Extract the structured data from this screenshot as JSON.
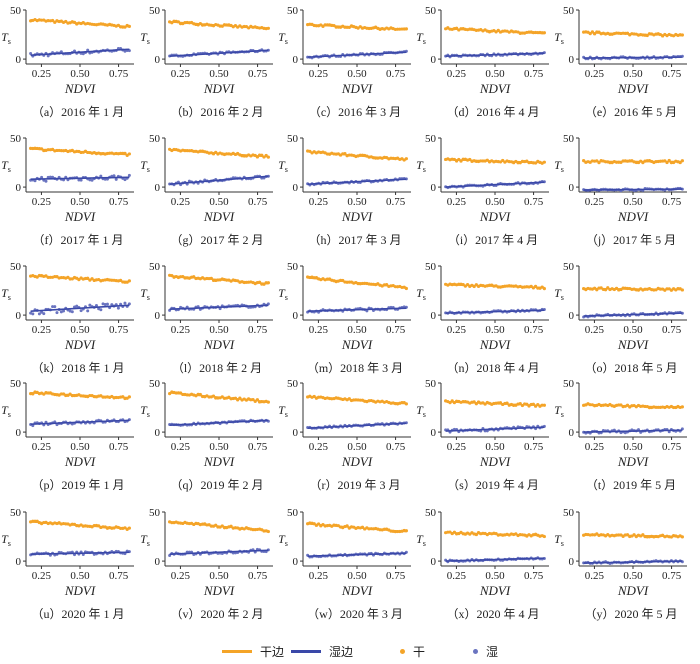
{
  "colors": {
    "dry": "#f4a428",
    "wet": "#3a48a8"
  },
  "legend": {
    "dry_edge": "干边",
    "wet_edge": "湿边",
    "dry": "干",
    "wet": "湿"
  },
  "chart_data": [
    {
      "type": "scatter",
      "caption": "（a）2016 年 1 月",
      "xlabel": "NDVI",
      "ylabel": "Ts",
      "xlim": [
        0.15,
        0.85
      ],
      "ylim": [
        -5,
        50
      ],
      "xticks": [
        "0.25",
        "0.50",
        "0.75"
      ],
      "yticks": [
        "0",
        "50"
      ],
      "dry": [
        40,
        33
      ],
      "wet": [
        4,
        10
      ],
      "wet_scatter": 2
    },
    {
      "type": "scatter",
      "caption": "（b）2016 年 2 月",
      "xlabel": "NDVI",
      "ylabel": "Ts",
      "xlim": [
        0.15,
        0.85
      ],
      "ylim": [
        -5,
        50
      ],
      "xticks": [
        "0.25",
        "0.50",
        "0.75"
      ],
      "yticks": [
        "0",
        "50"
      ],
      "dry": [
        38,
        31
      ],
      "wet": [
        3,
        9
      ],
      "wet_scatter": 1
    },
    {
      "type": "scatter",
      "caption": "（c）2016 年 3 月",
      "xlabel": "NDVI",
      "ylabel": "Ts",
      "xlim": [
        0.15,
        0.85
      ],
      "ylim": [
        -5,
        50
      ],
      "xticks": [
        "0.25",
        "0.50",
        "0.75"
      ],
      "yticks": [
        "0",
        "50"
      ],
      "dry": [
        35,
        30
      ],
      "wet": [
        2,
        7
      ],
      "wet_scatter": 1
    },
    {
      "type": "scatter",
      "caption": "（d）2016 年 4 月",
      "xlabel": "NDVI",
      "ylabel": "Ts",
      "xlim": [
        0.15,
        0.85
      ],
      "ylim": [
        -5,
        50
      ],
      "xticks": [
        "0.25",
        "0.50",
        "0.75"
      ],
      "yticks": [
        "0",
        "50"
      ],
      "dry": [
        31,
        26
      ],
      "wet": [
        3,
        6
      ],
      "wet_scatter": 1
    },
    {
      "type": "scatter",
      "caption": "（e）2016 年 5 月",
      "xlabel": "NDVI",
      "ylabel": "Ts",
      "xlim": [
        0.15,
        0.85
      ],
      "ylim": [
        -5,
        50
      ],
      "xticks": [
        "0.25",
        "0.50",
        "0.75"
      ],
      "yticks": [
        "0",
        "50"
      ],
      "dry": [
        27,
        24
      ],
      "wet": [
        1,
        2
      ],
      "wet_scatter": 1
    },
    {
      "type": "scatter",
      "caption": "（f）2017 年 1 月",
      "xlabel": "NDVI",
      "ylabel": "Ts",
      "xlim": [
        0.15,
        0.85
      ],
      "ylim": [
        -5,
        50
      ],
      "xticks": [
        "0.25",
        "0.50",
        "0.75"
      ],
      "yticks": [
        "0",
        "50"
      ],
      "dry": [
        39,
        33
      ],
      "wet": [
        8,
        10
      ],
      "wet_scatter": 2.5
    },
    {
      "type": "scatter",
      "caption": "（g）2017 年 2 月",
      "xlabel": "NDVI",
      "ylabel": "Ts",
      "xlim": [
        0.15,
        0.85
      ],
      "ylim": [
        -5,
        50
      ],
      "xticks": [
        "0.25",
        "0.50",
        "0.75"
      ],
      "yticks": [
        "0",
        "50"
      ],
      "dry": [
        38,
        31
      ],
      "wet": [
        3,
        11
      ],
      "wet_scatter": 1.5
    },
    {
      "type": "scatter",
      "caption": "（h）2017 年 3 月",
      "xlabel": "NDVI",
      "ylabel": "Ts",
      "xlim": [
        0.15,
        0.85
      ],
      "ylim": [
        -5,
        50
      ],
      "xticks": [
        "0.25",
        "0.50",
        "0.75"
      ],
      "yticks": [
        "0",
        "50"
      ],
      "dry": [
        36,
        28
      ],
      "wet": [
        3,
        8
      ],
      "wet_scatter": 1
    },
    {
      "type": "scatter",
      "caption": "（i）2017 年 4 月",
      "xlabel": "NDVI",
      "ylabel": "Ts",
      "xlim": [
        0.15,
        0.85
      ],
      "ylim": [
        -5,
        50
      ],
      "xticks": [
        "0.25",
        "0.50",
        "0.75"
      ],
      "yticks": [
        "0",
        "50"
      ],
      "dry": [
        28,
        25
      ],
      "wet": [
        0,
        5
      ],
      "wet_scatter": 1
    },
    {
      "type": "scatter",
      "caption": "（j）2017 年 5 月",
      "xlabel": "NDVI",
      "ylabel": "Ts",
      "xlim": [
        0.15,
        0.85
      ],
      "ylim": [
        -5,
        50
      ],
      "xticks": [
        "0.25",
        "0.50",
        "0.75"
      ],
      "yticks": [
        "0",
        "50"
      ],
      "dry": [
        26,
        26
      ],
      "wet": [
        -3,
        -2
      ],
      "wet_scatter": 1
    },
    {
      "type": "scatter",
      "caption": "（k）2018 年 1 月",
      "xlabel": "NDVI",
      "ylabel": "Ts",
      "xlim": [
        0.15,
        0.85
      ],
      "ylim": [
        -5,
        50
      ],
      "xticks": [
        "0.25",
        "0.50",
        "0.75"
      ],
      "yticks": [
        "0",
        "50"
      ],
      "dry": [
        40,
        34
      ],
      "wet": [
        4,
        10
      ],
      "wet_scatter": 3.5
    },
    {
      "type": "scatter",
      "caption": "（l）2018 年 2 月",
      "xlabel": "NDVI",
      "ylabel": "Ts",
      "xlim": [
        0.15,
        0.85
      ],
      "ylim": [
        -5,
        50
      ],
      "xticks": [
        "0.25",
        "0.50",
        "0.75"
      ],
      "yticks": [
        "0",
        "50"
      ],
      "dry": [
        40,
        32
      ],
      "wet": [
        6,
        10
      ],
      "wet_scatter": 1.5
    },
    {
      "type": "scatter",
      "caption": "（m）2018 年 3 月",
      "xlabel": "NDVI",
      "ylabel": "Ts",
      "xlim": [
        0.15,
        0.85
      ],
      "ylim": [
        -5,
        50
      ],
      "xticks": [
        "0.25",
        "0.50",
        "0.75"
      ],
      "yticks": [
        "0",
        "50"
      ],
      "dry": [
        38,
        28
      ],
      "wet": [
        4,
        7
      ],
      "wet_scatter": 1.5
    },
    {
      "type": "scatter",
      "caption": "（n）2018 年 4 月",
      "xlabel": "NDVI",
      "ylabel": "Ts",
      "xlim": [
        0.15,
        0.85
      ],
      "ylim": [
        -5,
        50
      ],
      "xticks": [
        "0.25",
        "0.50",
        "0.75"
      ],
      "yticks": [
        "0",
        "50"
      ],
      "dry": [
        31,
        28
      ],
      "wet": [
        2,
        5
      ],
      "wet_scatter": 1
    },
    {
      "type": "scatter",
      "caption": "（o）2018 年 5 月",
      "xlabel": "NDVI",
      "ylabel": "Ts",
      "xlim": [
        0.15,
        0.85
      ],
      "ylim": [
        -5,
        50
      ],
      "xticks": [
        "0.25",
        "0.50",
        "0.75"
      ],
      "yticks": [
        "0",
        "50"
      ],
      "dry": [
        27,
        26
      ],
      "wet": [
        -1,
        2
      ],
      "wet_scatter": 1
    },
    {
      "type": "scatter",
      "caption": "（p）2019 年 1 月",
      "xlabel": "NDVI",
      "ylabel": "Ts",
      "xlim": [
        0.15,
        0.85
      ],
      "ylim": [
        -5,
        50
      ],
      "xticks": [
        "0.25",
        "0.50",
        "0.75"
      ],
      "yticks": [
        "0",
        "50"
      ],
      "dry": [
        40,
        35
      ],
      "wet": [
        8,
        12
      ],
      "wet_scatter": 1.5
    },
    {
      "type": "scatter",
      "caption": "（q）2019 年 2 月",
      "xlabel": "NDVI",
      "ylabel": "Ts",
      "xlim": [
        0.15,
        0.85
      ],
      "ylim": [
        -5,
        50
      ],
      "xticks": [
        "0.25",
        "0.50",
        "0.75"
      ],
      "yticks": [
        "0",
        "50"
      ],
      "dry": [
        40,
        31
      ],
      "wet": [
        7,
        12
      ],
      "wet_scatter": 1
    },
    {
      "type": "scatter",
      "caption": "（r）2019 年 3 月",
      "xlabel": "NDVI",
      "ylabel": "Ts",
      "xlim": [
        0.15,
        0.85
      ],
      "ylim": [
        -5,
        50
      ],
      "xticks": [
        "0.25",
        "0.50",
        "0.75"
      ],
      "yticks": [
        "0",
        "50"
      ],
      "dry": [
        36,
        29
      ],
      "wet": [
        4,
        9
      ],
      "wet_scatter": 1
    },
    {
      "type": "scatter",
      "caption": "（s）2019 年 4 月",
      "xlabel": "NDVI",
      "ylabel": "Ts",
      "xlim": [
        0.15,
        0.85
      ],
      "ylim": [
        -5,
        50
      ],
      "xticks": [
        "0.25",
        "0.50",
        "0.75"
      ],
      "yticks": [
        "0",
        "50"
      ],
      "dry": [
        31,
        27
      ],
      "wet": [
        1,
        5
      ],
      "wet_scatter": 1.5
    },
    {
      "type": "scatter",
      "caption": "（t）2019 年 5 月",
      "xlabel": "NDVI",
      "ylabel": "Ts",
      "xlim": [
        0.15,
        0.85
      ],
      "ylim": [
        -5,
        50
      ],
      "xticks": [
        "0.25",
        "0.50",
        "0.75"
      ],
      "yticks": [
        "0",
        "50"
      ],
      "dry": [
        28,
        25
      ],
      "wet": [
        0,
        2
      ],
      "wet_scatter": 1.5
    },
    {
      "type": "scatter",
      "caption": "（u）2020 年 1 月",
      "xlabel": "NDVI",
      "ylabel": "Ts",
      "xlim": [
        0.15,
        0.85
      ],
      "ylim": [
        -5,
        50
      ],
      "xticks": [
        "0.25",
        "0.50",
        "0.75"
      ],
      "yticks": [
        "0",
        "50"
      ],
      "dry": [
        40,
        33
      ],
      "wet": [
        7,
        9
      ],
      "wet_scatter": 1.5
    },
    {
      "type": "scatter",
      "caption": "（v）2020 年 2 月",
      "xlabel": "NDVI",
      "ylabel": "Ts",
      "xlim": [
        0.15,
        0.85
      ],
      "ylim": [
        -5,
        50
      ],
      "xticks": [
        "0.25",
        "0.50",
        "0.75"
      ],
      "yticks": [
        "0",
        "50"
      ],
      "dry": [
        40,
        31
      ],
      "wet": [
        7,
        11
      ],
      "wet_scatter": 1.5
    },
    {
      "type": "scatter",
      "caption": "（w）2020 年 3 月",
      "xlabel": "NDVI",
      "ylabel": "Ts",
      "xlim": [
        0.15,
        0.85
      ],
      "ylim": [
        -5,
        50
      ],
      "xticks": [
        "0.25",
        "0.50",
        "0.75"
      ],
      "yticks": [
        "0",
        "50"
      ],
      "dry": [
        38,
        30
      ],
      "wet": [
        5,
        8
      ],
      "wet_scatter": 1
    },
    {
      "type": "scatter",
      "caption": "（x）2020 年 4 月",
      "xlabel": "NDVI",
      "ylabel": "Ts",
      "xlim": [
        0.15,
        0.85
      ],
      "ylim": [
        -5,
        50
      ],
      "xticks": [
        "0.25",
        "0.50",
        "0.75"
      ],
      "yticks": [
        "0",
        "50"
      ],
      "dry": [
        29,
        26
      ],
      "wet": [
        0,
        3
      ],
      "wet_scatter": 1
    },
    {
      "type": "scatter",
      "caption": "（y）2020 年 5 月",
      "xlabel": "NDVI",
      "ylabel": "Ts",
      "xlim": [
        0.15,
        0.85
      ],
      "ylim": [
        -5,
        50
      ],
      "xticks": [
        "0.25",
        "0.50",
        "0.75"
      ],
      "yticks": [
        "0",
        "50"
      ],
      "dry": [
        27,
        25
      ],
      "wet": [
        -2,
        0
      ],
      "wet_scatter": 1
    }
  ]
}
